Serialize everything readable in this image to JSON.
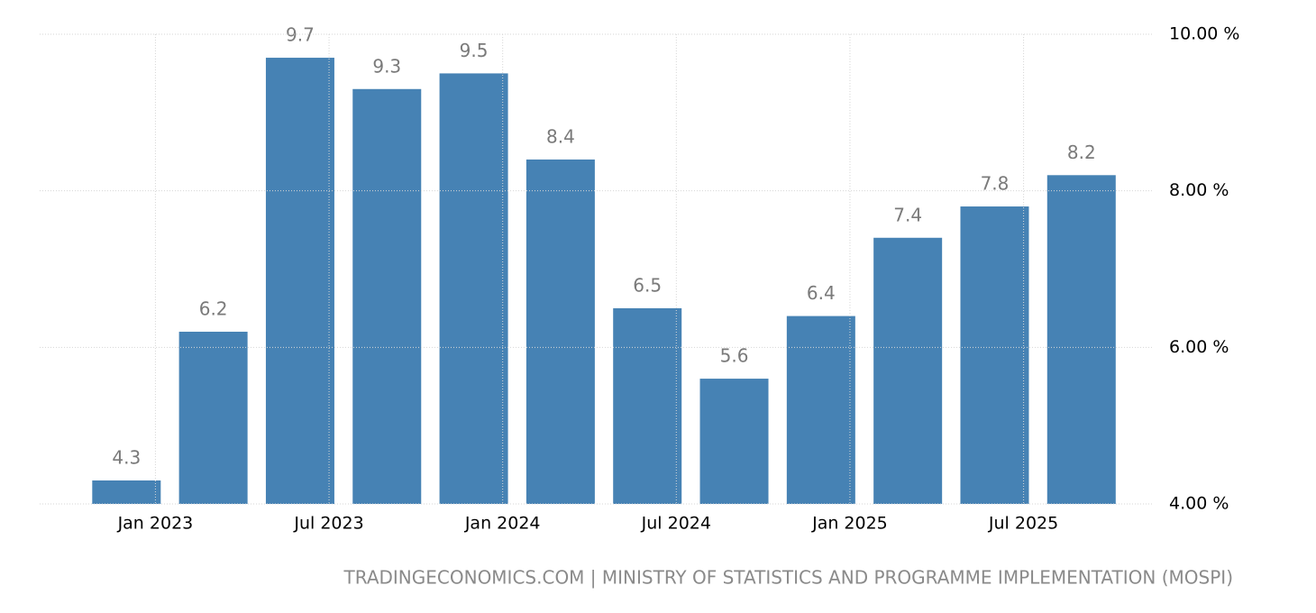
{
  "chart_data": {
    "type": "bar",
    "x": [
      "2022-12",
      "2023-03",
      "2023-06",
      "2023-09",
      "2023-12",
      "2024-03",
      "2024-06",
      "2024-09",
      "2024-12",
      "2025-03",
      "2025-06",
      "2025-09"
    ],
    "values": [
      4.3,
      6.2,
      9.7,
      9.3,
      9.5,
      8.4,
      6.5,
      5.6,
      6.4,
      7.4,
      7.8,
      8.2
    ],
    "color": "#4682b4",
    "xlim": [
      "2022-09",
      "2025-11"
    ],
    "xticks": [
      {
        "value": "2023-01",
        "label": "Jan 2023"
      },
      {
        "value": "2023-07",
        "label": "Jul 2023"
      },
      {
        "value": "2024-01",
        "label": "Jan 2024"
      },
      {
        "value": "2024-07",
        "label": "Jul 2024"
      },
      {
        "value": "2025-01",
        "label": "Jan 2025"
      },
      {
        "value": "2025-07",
        "label": "Jul 2025"
      }
    ],
    "ylim": [
      4,
      10
    ],
    "yticks": [
      {
        "value": 4,
        "label": "4.00 %"
      },
      {
        "value": 6,
        "label": "6.00 %"
      },
      {
        "value": 8,
        "label": "8.00 %"
      },
      {
        "value": 10,
        "label": "10.00 %"
      }
    ],
    "grid": true,
    "source": "TRADINGECONOMICS.COM | MINISTRY OF STATISTICS AND PROGRAMME IMPLEMENTATION (MOSPI)"
  }
}
